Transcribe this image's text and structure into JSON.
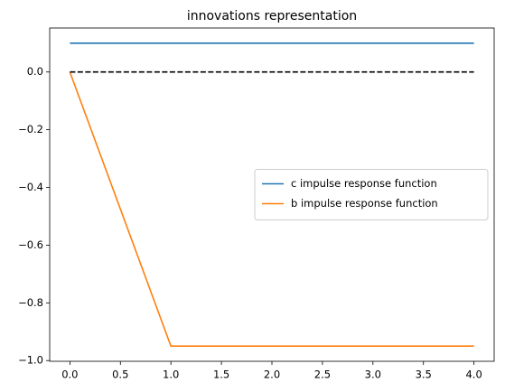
{
  "chart_data": {
    "type": "line",
    "title": "innovations representation",
    "x": [
      0,
      1,
      2,
      3,
      4
    ],
    "series": [
      {
        "name": "c impulse response function",
        "color": "#1f77b4",
        "values": [
          0.1,
          0.1,
          0.1,
          0.1,
          0.1
        ]
      },
      {
        "name": "b impulse response function",
        "color": "#ff7f0e",
        "values": [
          0,
          -0.95,
          -0.95,
          -0.95,
          -0.95
        ]
      },
      {
        "color": "#000000",
        "dashed": true,
        "values": [
          0,
          0,
          0,
          0,
          0
        ]
      }
    ],
    "xlim": [
      -0.2,
      4.2
    ],
    "ylim": [
      -1.0025,
      0.1525
    ],
    "xticks": [
      {
        "value": 0,
        "label": "0.0"
      },
      {
        "value": 0.5,
        "label": "0.5"
      },
      {
        "value": 1,
        "label": "1.0"
      },
      {
        "value": 1.5,
        "label": "1.5"
      },
      {
        "value": 2,
        "label": "2.0"
      },
      {
        "value": 2.5,
        "label": "2.5"
      },
      {
        "value": 3,
        "label": "3.0"
      },
      {
        "value": 3.5,
        "label": "3.5"
      },
      {
        "value": 4,
        "label": "4.0"
      }
    ],
    "yticks": [
      {
        "value": -1,
        "label": "−1.0"
      },
      {
        "value": -0.8,
        "label": "−0.8"
      },
      {
        "value": -0.6,
        "label": "−0.6"
      },
      {
        "value": -0.4,
        "label": "−0.4"
      },
      {
        "value": -0.2,
        "label": "−0.2"
      },
      {
        "value": 0,
        "label": "0.0"
      }
    ],
    "legend": "center right",
    "grid": false
  }
}
